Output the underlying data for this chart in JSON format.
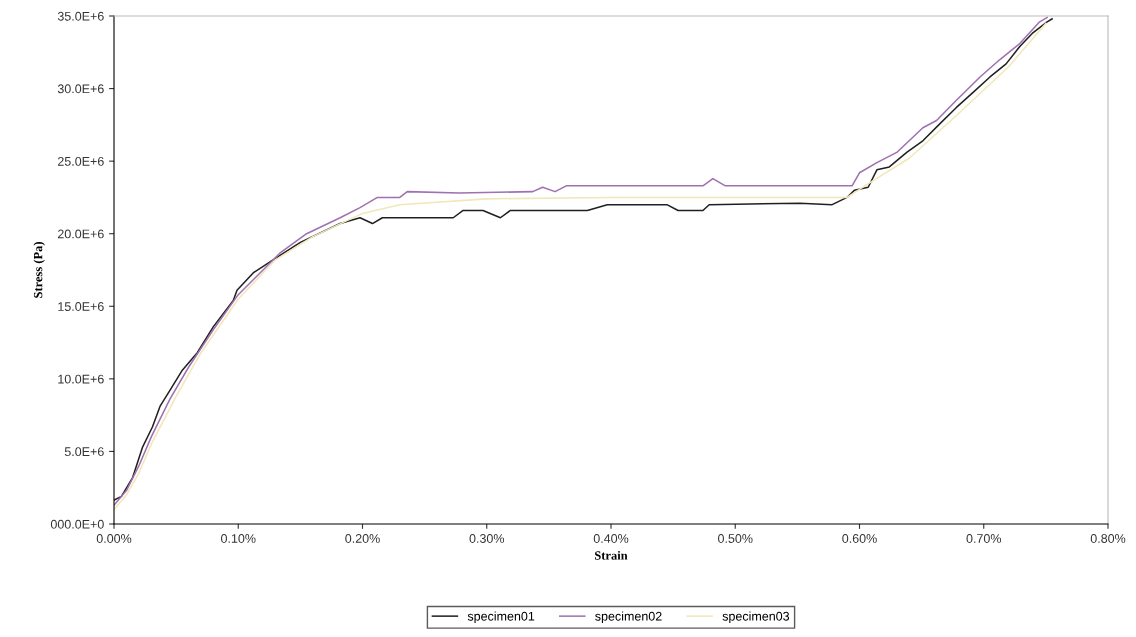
{
  "chart_data": {
    "type": "line",
    "xlabel": "Strain",
    "ylabel": "Stress (Pa)",
    "xlim": [
      0,
      0.8
    ],
    "ylim": [
      0,
      35000000
    ],
    "xticks": [
      {
        "value": 0,
        "label": "0.00%"
      },
      {
        "value": 0.1,
        "label": "0.10%"
      },
      {
        "value": 0.2,
        "label": "0.20%"
      },
      {
        "value": 0.3,
        "label": "0.30%"
      },
      {
        "value": 0.4,
        "label": "0.40%"
      },
      {
        "value": 0.5,
        "label": "0.50%"
      },
      {
        "value": 0.6,
        "label": "0.60%"
      },
      {
        "value": 0.7,
        "label": "0.70%"
      },
      {
        "value": 0.8,
        "label": "0.80%"
      }
    ],
    "yticks": [
      {
        "value": 0,
        "label": "000.0E+0"
      },
      {
        "value": 5000000,
        "label": "5.0E+6"
      },
      {
        "value": 10000000,
        "label": "10.0E+6"
      },
      {
        "value": 15000000,
        "label": "15.0E+6"
      },
      {
        "value": 20000000,
        "label": "20.0E+6"
      },
      {
        "value": 25000000,
        "label": "25.0E+6"
      },
      {
        "value": 30000000,
        "label": "30.0E+6"
      },
      {
        "value": 35000000,
        "label": "35.0E+6"
      }
    ],
    "grid": false,
    "legend": "bottom",
    "marker": "none",
    "line_style": "solid",
    "series": [
      {
        "name": "specimen01",
        "color": "#202020",
        "x": [
          0,
          0.006,
          0.015,
          0.023,
          0.031,
          0.037,
          0.045,
          0.055,
          0.067,
          0.08,
          0.096,
          0.099,
          0.112,
          0.128,
          0.15,
          0.182,
          0.198,
          0.208,
          0.216,
          0.262,
          0.273,
          0.281,
          0.297,
          0.311,
          0.319,
          0.381,
          0.397,
          0.445,
          0.454,
          0.474,
          0.479,
          0.552,
          0.578,
          0.59,
          0.596,
          0.607,
          0.614,
          0.624,
          0.638,
          0.651,
          0.665,
          0.678,
          0.691,
          0.705,
          0.718,
          0.729,
          0.739,
          0.751,
          0.755
        ],
        "values": [
          1650000,
          1900000,
          3200000,
          5300000,
          6700000,
          8100000,
          9200000,
          10600000,
          11800000,
          13600000,
          15400000,
          16100000,
          17300000,
          18200000,
          19400000,
          20700000,
          21100000,
          20700000,
          21100000,
          21100000,
          21100000,
          21600000,
          21600000,
          21100000,
          21600000,
          21600000,
          22000000,
          22000000,
          21600000,
          21600000,
          22000000,
          22100000,
          22000000,
          22500000,
          23000000,
          23200000,
          24400000,
          24600000,
          25600000,
          26400000,
          27600000,
          28700000,
          29700000,
          30800000,
          31700000,
          32900000,
          33800000,
          34600000,
          34800000
        ]
      },
      {
        "name": "specimen02",
        "color": "#a070b0",
        "x": [
          0,
          0.01,
          0.02,
          0.03,
          0.045,
          0.06,
          0.08,
          0.1,
          0.134,
          0.155,
          0.182,
          0.198,
          0.212,
          0.23,
          0.236,
          0.278,
          0.337,
          0.345,
          0.355,
          0.364,
          0.474,
          0.482,
          0.492,
          0.552,
          0.594,
          0.6,
          0.614,
          0.63,
          0.651,
          0.662,
          0.678,
          0.697,
          0.713,
          0.729,
          0.745,
          0.751
        ],
        "values": [
          1300000,
          2300000,
          4000000,
          6000000,
          8600000,
          10800000,
          13400000,
          15800000,
          18700000,
          20000000,
          21100000,
          21800000,
          22500000,
          22500000,
          22900000,
          22800000,
          22900000,
          23200000,
          22900000,
          23300000,
          23300000,
          23800000,
          23300000,
          23300000,
          23300000,
          24200000,
          24900000,
          25600000,
          27300000,
          27800000,
          29200000,
          30800000,
          32000000,
          33100000,
          34600000,
          34900000
        ]
      },
      {
        "name": "specimen03",
        "color": "#f0e8b8",
        "x": [
          0,
          0.01,
          0.02,
          0.03,
          0.05,
          0.07,
          0.1,
          0.13,
          0.16,
          0.2,
          0.23,
          0.3,
          0.4,
          0.59,
          0.61,
          0.64,
          0.68,
          0.72,
          0.75
        ],
        "values": [
          1000000,
          2000000,
          3500000,
          5500000,
          8800000,
          11800000,
          15500000,
          18200000,
          19800000,
          21400000,
          22000000,
          22400000,
          22500000,
          22500000,
          23600000,
          25200000,
          28300000,
          31500000,
          34500000
        ]
      }
    ]
  }
}
